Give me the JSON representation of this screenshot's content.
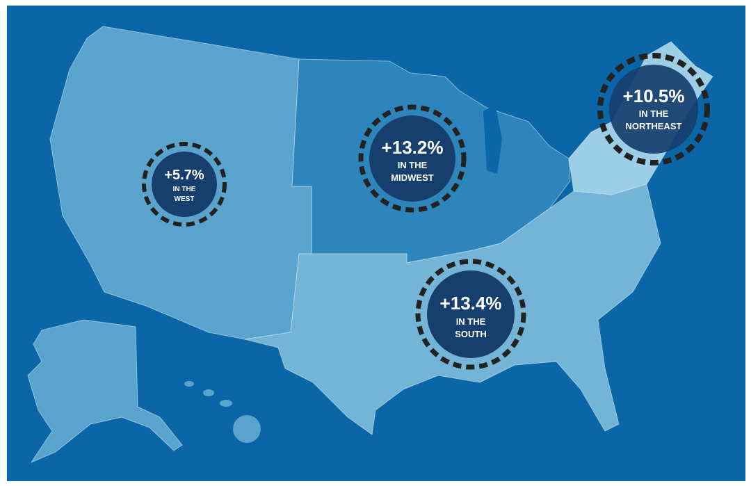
{
  "regions": [
    {
      "value": "+5.7%",
      "label": [
        "IN THE",
        "WEST"
      ]
    },
    {
      "value": "+13.2%",
      "label": [
        "IN THE",
        "MIDWEST"
      ]
    },
    {
      "value": "+10.5%",
      "label": [
        "IN THE",
        "NORTHEAST"
      ]
    },
    {
      "value": "+13.4%",
      "label": [
        "IN THE",
        "SOUTH"
      ]
    }
  ]
}
